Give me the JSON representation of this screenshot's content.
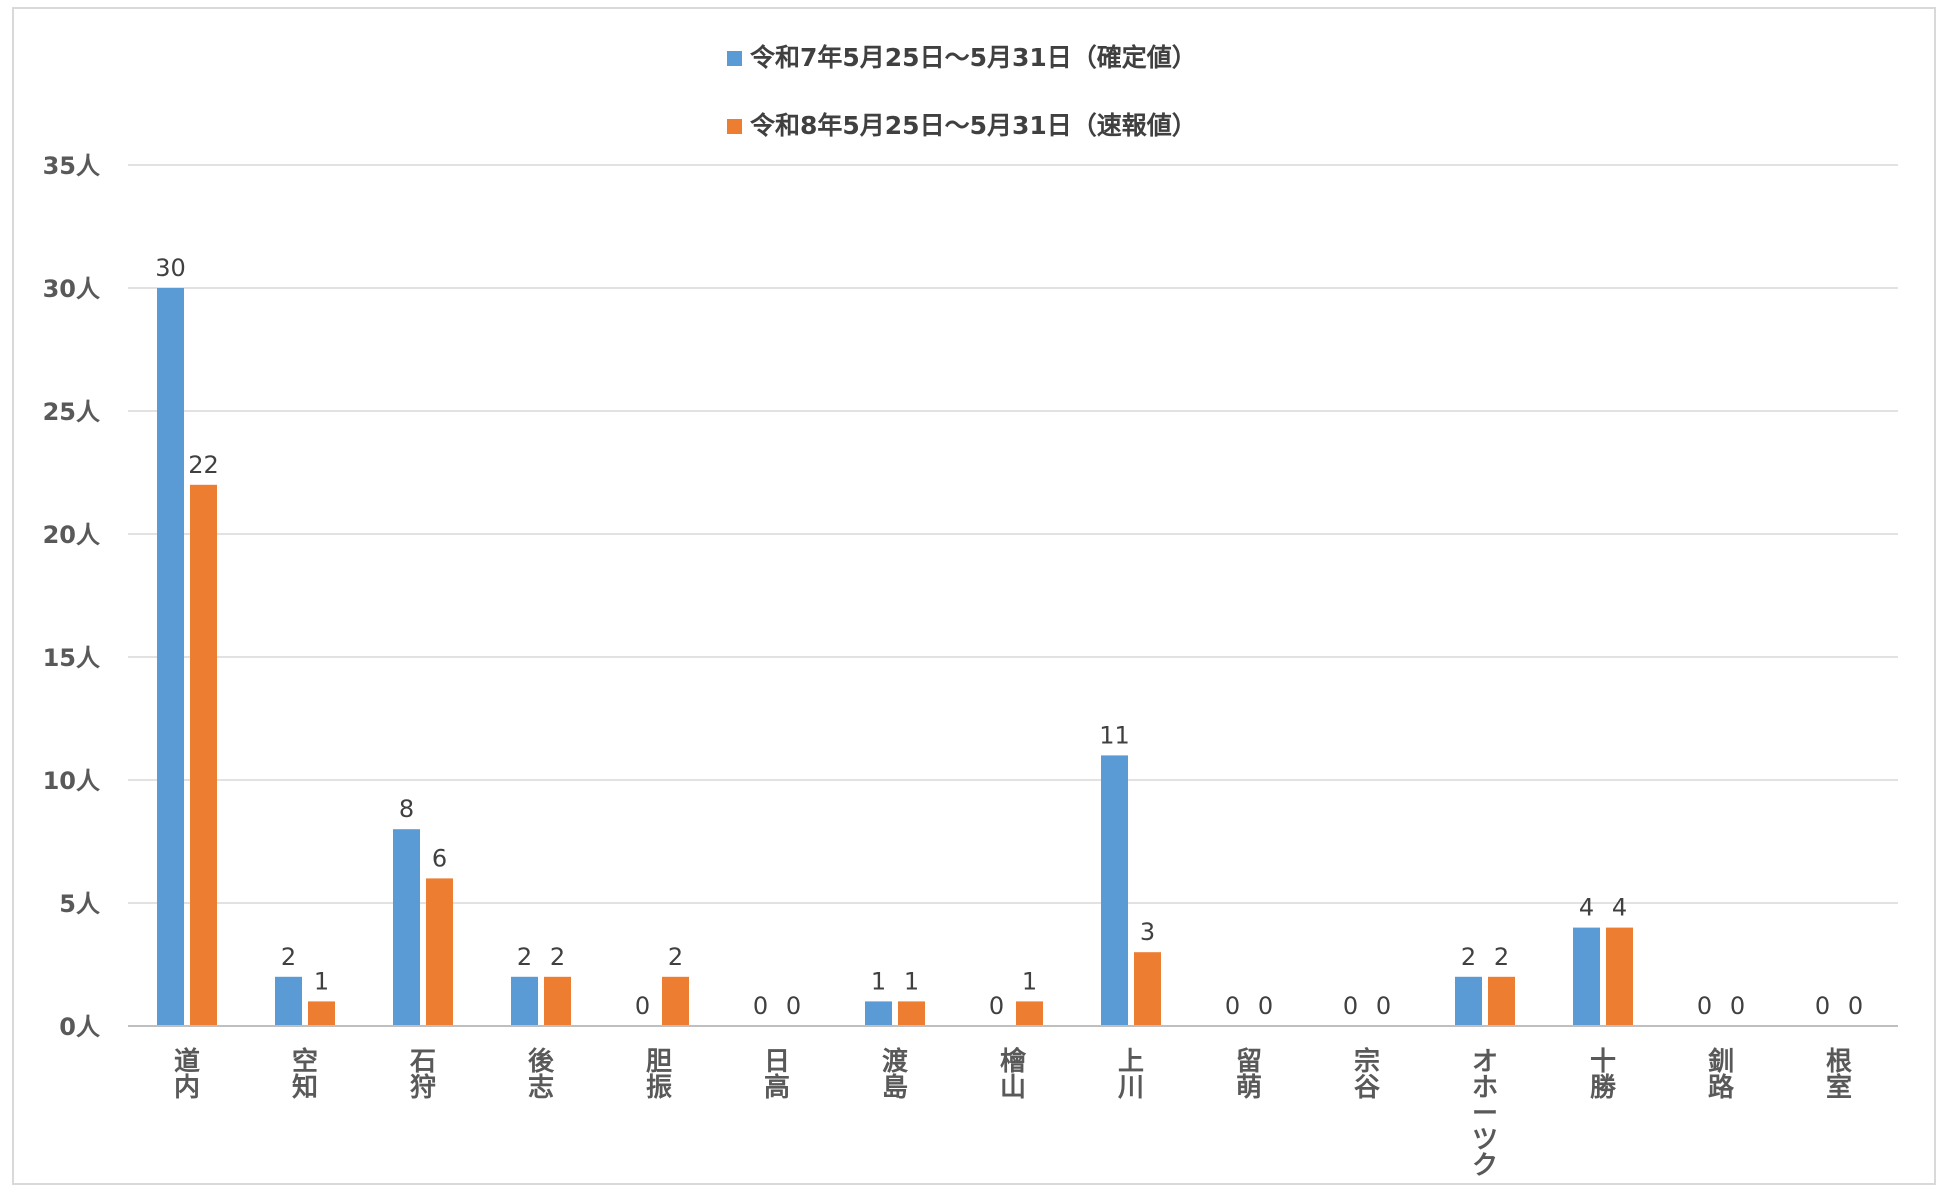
{
  "chart_data": {
    "type": "bar",
    "categories": [
      "道内",
      "空知",
      "石狩",
      "後志",
      "胆振",
      "日高",
      "渡島",
      "檜山",
      "上川",
      "留萌",
      "宗谷",
      "オホーツク",
      "十勝",
      "釧路",
      "根室"
    ],
    "series": [
      {
        "name": "令和7年5月25日～5月31日（確定値）",
        "color": "#5b9bd5",
        "values": [
          30,
          2,
          8,
          2,
          0,
          0,
          1,
          0,
          11,
          0,
          0,
          2,
          4,
          0,
          0
        ]
      },
      {
        "name": "令和8年5月25日～5月31日（速報値）",
        "color": "#ed7d31",
        "values": [
          22,
          1,
          6,
          2,
          2,
          0,
          1,
          1,
          3,
          0,
          0,
          2,
          4,
          0,
          0
        ]
      }
    ],
    "ylim": [
      0,
      35
    ],
    "yticks": [
      0,
      5,
      10,
      15,
      20,
      25,
      30,
      35
    ],
    "ytick_labels": [
      "0人",
      "5人",
      "10人",
      "15人",
      "20人",
      "25人",
      "30人",
      "35人"
    ],
    "grid": true,
    "legend_position": "top-center",
    "data_labels": true
  }
}
